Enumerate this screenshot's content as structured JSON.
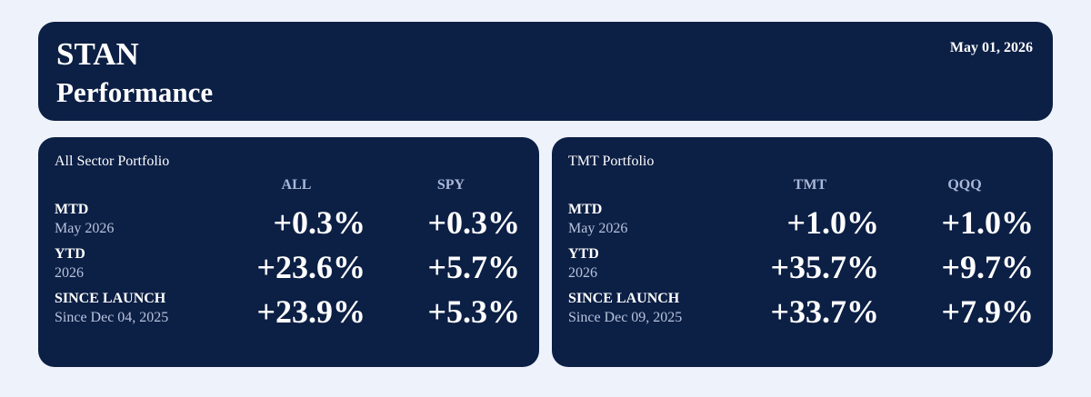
{
  "header": {
    "title": "STAN",
    "subtitle": "Performance",
    "date": "May 01, 2026"
  },
  "panels": [
    {
      "title": "All Sector Portfolio",
      "columns": [
        "ALL",
        "SPY"
      ],
      "rows": [
        {
          "label": "MTD",
          "sublabel": "May 2026",
          "values": [
            "+0.3%",
            "+0.3%"
          ]
        },
        {
          "label": "YTD",
          "sublabel": "2026",
          "values": [
            "+23.6%",
            "+5.7%"
          ]
        },
        {
          "label": "SINCE LAUNCH",
          "sublabel": "Since Dec 04, 2025",
          "values": [
            "+23.9%",
            "+5.3%"
          ]
        }
      ]
    },
    {
      "title": "TMT Portfolio",
      "columns": [
        "TMT",
        "QQQ"
      ],
      "rows": [
        {
          "label": "MTD",
          "sublabel": "May 2026",
          "values": [
            "+1.0%",
            "+1.0%"
          ]
        },
        {
          "label": "YTD",
          "sublabel": "2026",
          "values": [
            "+35.7%",
            "+9.7%"
          ]
        },
        {
          "label": "SINCE LAUNCH",
          "sublabel": "Since Dec 09, 2025",
          "values": [
            "+33.7%",
            "+7.9%"
          ]
        }
      ]
    }
  ]
}
